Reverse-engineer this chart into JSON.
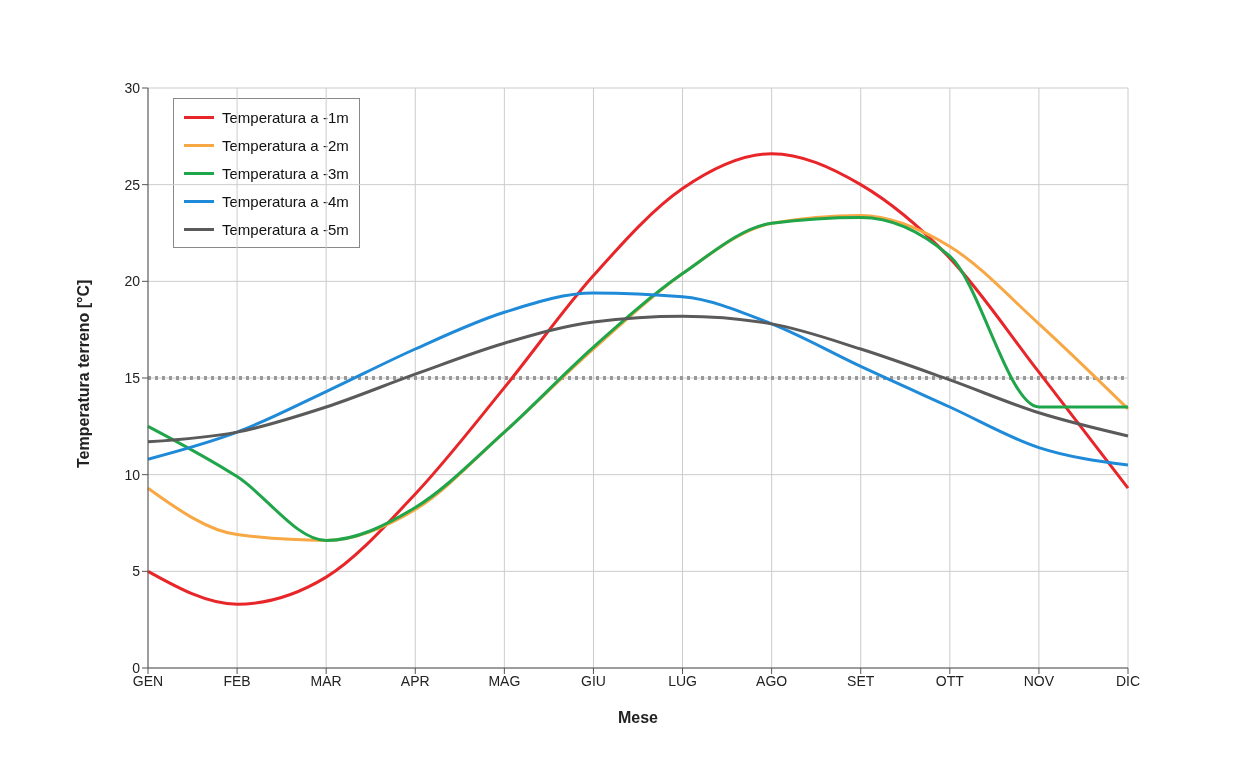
{
  "chart_data": {
    "type": "line",
    "xlabel": "Mese",
    "ylabel": "Temperatura terreno [°C]",
    "categories": [
      "GEN",
      "FEB",
      "MAR",
      "APR",
      "MAG",
      "GIU",
      "LUG",
      "AGO",
      "SET",
      "OTT",
      "NOV",
      "DIC"
    ],
    "series": [
      {
        "name": "Temperatura a -1m",
        "color": "#e8262a",
        "values": [
          5,
          3.3,
          4.7,
          9,
          14.5,
          20.3,
          24.8,
          26.6,
          25,
          21.2,
          15.3,
          9.3
        ]
      },
      {
        "name": "Temperatura a -2m",
        "color": "#f7a743",
        "values": [
          9.3,
          6.9,
          6.6,
          8.2,
          12.2,
          16.5,
          20.4,
          23,
          23.4,
          21.8,
          17.8,
          13.4
        ]
      },
      {
        "name": "Temperatura a -3m",
        "color": "#1fa54a",
        "values": [
          12.5,
          9.9,
          6.6,
          8.3,
          12.2,
          16.6,
          20.4,
          23,
          23.3,
          21.3,
          13.5,
          13.5
        ]
      },
      {
        "name": "Temperatura a -4m",
        "color": "#1f8ad8",
        "values": [
          10.8,
          12.2,
          14.3,
          16.5,
          18.4,
          19.4,
          19.2,
          17.8,
          15.6,
          13.5,
          11.4,
          10.5
        ]
      },
      {
        "name": "Temperatura a -5m",
        "color": "#5a5a5a",
        "values": [
          11.7,
          12.2,
          13.5,
          15.2,
          16.8,
          17.9,
          18.2,
          17.8,
          16.5,
          14.9,
          13.2,
          12
        ]
      }
    ],
    "ylim": [
      0,
      30
    ],
    "yticks": [
      0,
      5,
      10,
      15,
      20,
      25,
      30
    ],
    "grid": true,
    "legend": "top left",
    "marker": "none",
    "line_style": "solid",
    "ref_lines": [
      {
        "axis": "y",
        "value": 15,
        "color": "#999999",
        "line_style": "dotted"
      }
    ]
  }
}
